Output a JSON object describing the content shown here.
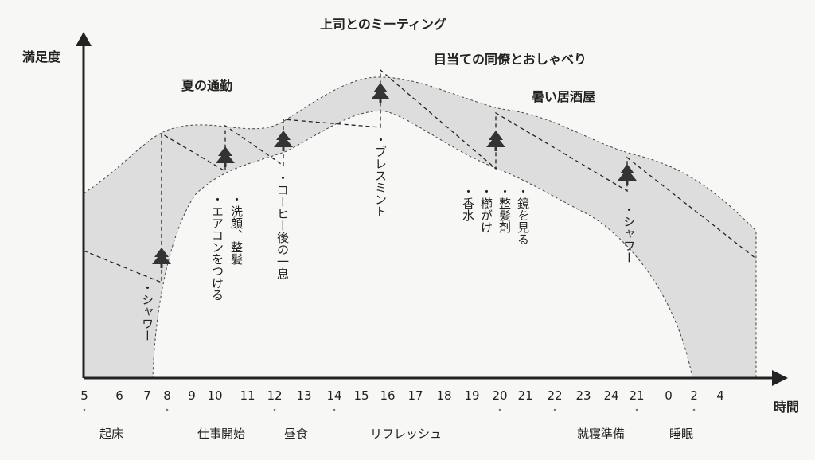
{
  "axes": {
    "y_label": "満足度",
    "x_label": "時間"
  },
  "hours": [
    "5",
    "6",
    "7",
    "8",
    "9",
    "10",
    "11",
    "12",
    "13",
    "14",
    "15",
    "16",
    "17",
    "18",
    "19",
    "20",
    "21",
    "22",
    "23",
    "24",
    "21",
    "0",
    "2",
    "4"
  ],
  "periods": [
    "起床",
    "仕事開始",
    "昼食",
    "リフレッシュ",
    "就寝準備",
    "睡眠"
  ],
  "events": {
    "commute": "夏の通勤",
    "boss_meeting": "上司とのミーティング",
    "chat": "目当ての同僚とおしゃべり",
    "bar": "暑い居酒屋"
  },
  "notes": {
    "shower_morning": "・シャワー",
    "wash_face": "・洗顔、整髪",
    "aircon": "・エアコンをつける",
    "coffee": "・コーヒー後の一息",
    "breath_mint": "・ブレスミント",
    "perfume": "・香水",
    "comb": "・櫛がけ",
    "styling": "・整髪剤",
    "mirror": "・鏡を見る",
    "shower_night": "・シャワー"
  },
  "colors": {
    "band": "#dddddd",
    "line": "#222222",
    "background": "#f7f7f5"
  },
  "icons": [
    "tree-icon",
    "tree-icon",
    "tree-icon",
    "tree-icon",
    "tree-icon",
    "tree-icon",
    "tree-icon"
  ]
}
